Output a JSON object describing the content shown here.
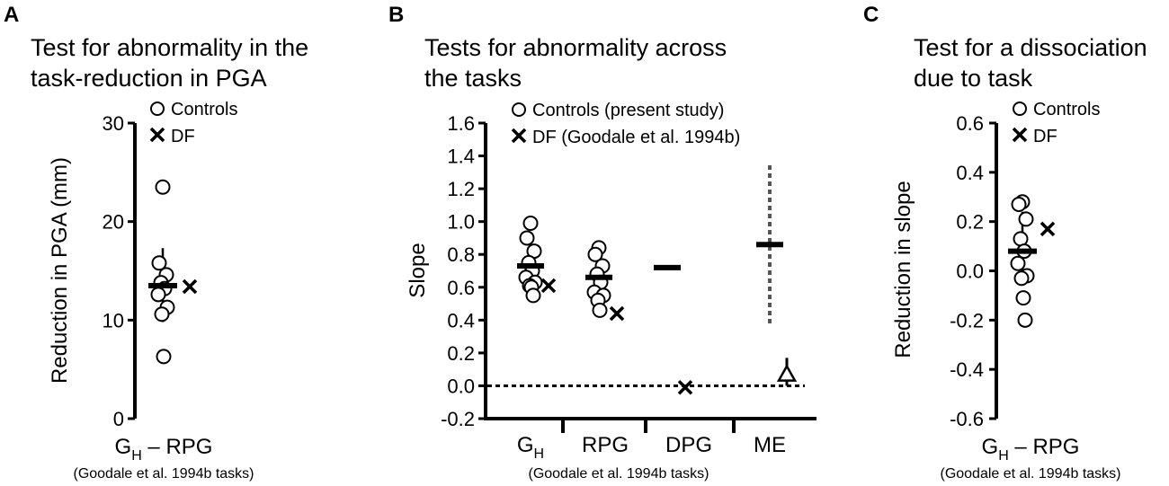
{
  "colors": {
    "foreground": "#000000",
    "background": "#ffffff",
    "dotted": "#555555"
  },
  "icons": {
    "controls": "open-circle",
    "df": "x-cross",
    "me_marker": "triangle"
  },
  "chart_data": [
    {
      "panel": "A",
      "type": "scatter",
      "title_lines": [
        "Test for abnormality in the",
        "task-reduction in PGA"
      ],
      "ylabel": "Reduction in PGA (mm)",
      "ylim": [
        0,
        30
      ],
      "yticks": [
        "0",
        "10",
        "20",
        "30"
      ],
      "legend": [
        "Controls",
        "DF"
      ],
      "categories": [
        {
          "main": "G",
          "sub": "H",
          "rest": " – RPG",
          "controls": [
            23.5,
            15.8,
            14.6,
            13.8,
            13.2,
            12.6,
            11.3,
            10.6,
            6.3
          ],
          "control_mean": 13.5,
          "control_error": [
            9.8,
            17.3
          ],
          "df": 13.4
        }
      ],
      "note": "(Goodale et al. 1994b tasks)"
    },
    {
      "panel": "B",
      "type": "scatter",
      "title_lines": [
        "Tests for abnormality across",
        "the tasks"
      ],
      "ylabel": "Slope",
      "ylim": [
        -0.2,
        1.6
      ],
      "yticks": [
        "-0.2",
        "0.0",
        "0.2",
        "0.4",
        "0.6",
        "0.8",
        "1.0",
        "1.2",
        "1.4",
        "1.6"
      ],
      "legend": [
        "Controls (present study)",
        "DF (Goodale et al. 1994b)"
      ],
      "reference_line": 0.0,
      "categories": [
        {
          "main": "G",
          "sub": "H",
          "rest": "",
          "controls": [
            0.99,
            0.9,
            0.82,
            0.75,
            0.7,
            0.66,
            0.63,
            0.61,
            0.6,
            0.55
          ],
          "control_mean": 0.73,
          "df": 0.61
        },
        {
          "main": "RPG",
          "sub": "",
          "rest": "",
          "controls": [
            0.84,
            0.8,
            0.73,
            0.68,
            0.63,
            0.57,
            0.55,
            0.52,
            0.46
          ],
          "control_mean": 0.66,
          "df": 0.44
        },
        {
          "main": "DPG",
          "sub": "",
          "rest": "",
          "controls": [],
          "control_mean": 0.72,
          "df": -0.01
        },
        {
          "main": "ME",
          "sub": "",
          "rest": "",
          "controls": [],
          "control_mean": 0.86,
          "control_range": [
            0.38,
            1.35
          ],
          "df_marker": 0.07,
          "df_error": [
            0.0,
            0.17
          ]
        }
      ],
      "note": "(Goodale et al. 1994b tasks)"
    },
    {
      "panel": "C",
      "type": "scatter",
      "title_lines": [
        "Test for a dissociation",
        "due to task"
      ],
      "ylabel": "Reduction in slope",
      "ylim": [
        -0.6,
        0.6
      ],
      "yticks": [
        "-0.6",
        "-0.4",
        "-0.2",
        "0.0",
        "0.2",
        "0.4",
        "0.6"
      ],
      "legend": [
        "Controls",
        "DF"
      ],
      "categories": [
        {
          "main": "G",
          "sub": "H",
          "rest": " – RPG",
          "controls": [
            0.28,
            0.27,
            0.21,
            0.13,
            0.08,
            0.03,
            -0.02,
            -0.03,
            -0.11,
            -0.2
          ],
          "control_mean": 0.08,
          "control_error": [
            -0.05,
            0.24
          ],
          "df": 0.17
        }
      ],
      "note": "(Goodale et al. 1994b tasks)"
    }
  ]
}
